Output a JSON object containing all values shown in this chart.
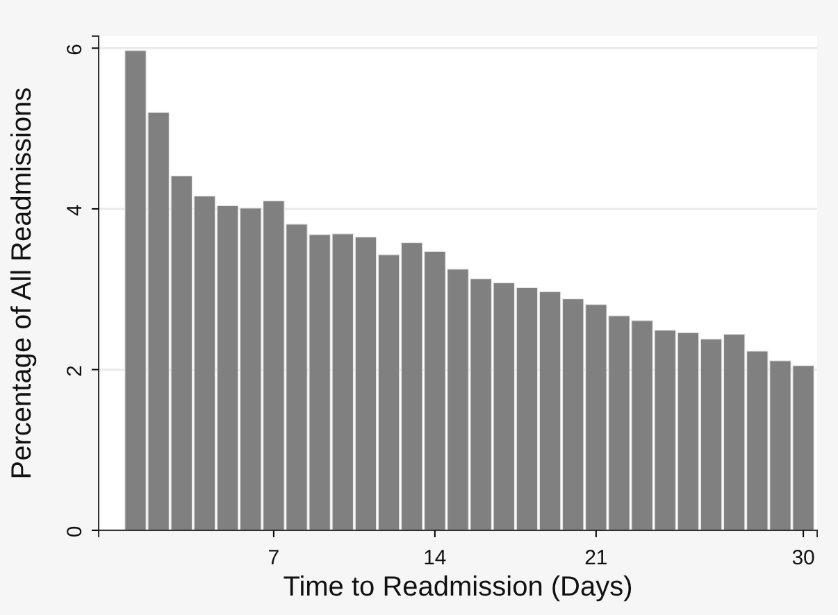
{
  "chart_data": {
    "type": "bar",
    "xlabel": "Time to Readmission (Days)",
    "ylabel": "Percentage of All Readmissions",
    "x": [
      1,
      2,
      3,
      4,
      5,
      6,
      7,
      8,
      9,
      10,
      11,
      12,
      13,
      14,
      15,
      16,
      17,
      18,
      19,
      20,
      21,
      22,
      23,
      24,
      25,
      26,
      27,
      28,
      29,
      30
    ],
    "values": [
      5.97,
      5.2,
      4.41,
      4.16,
      4.04,
      4.01,
      4.1,
      3.81,
      3.68,
      3.69,
      3.65,
      3.43,
      3.58,
      3.47,
      3.25,
      3.13,
      3.08,
      3.02,
      2.97,
      2.88,
      2.81,
      2.67,
      2.61,
      2.49,
      2.46,
      2.38,
      2.44,
      2.23,
      2.11,
      2.05
    ],
    "color": "#808080",
    "xlim": [
      -0.6,
      30.6
    ],
    "xticks": [
      7,
      14,
      21,
      30
    ],
    "ylim": [
      0,
      6.15
    ],
    "yticks": [
      0,
      2,
      4,
      6
    ],
    "grid": "y"
  }
}
